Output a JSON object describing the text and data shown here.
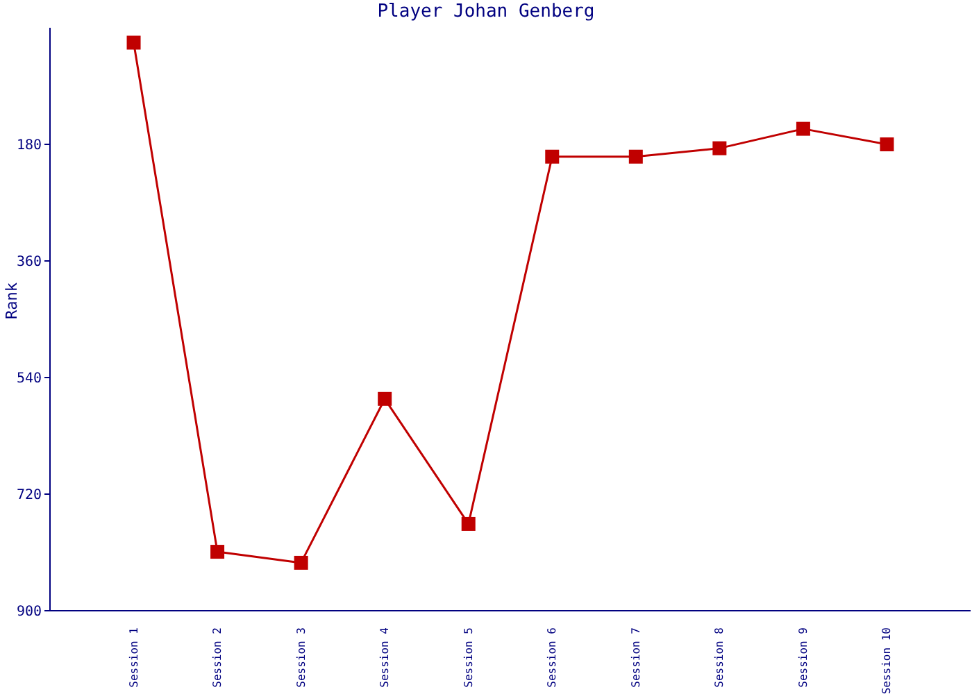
{
  "chart_data": {
    "type": "line",
    "title": "Player Johan Genberg",
    "ylabel": "Rank",
    "categories": [
      "Session 1",
      "Session 2",
      "Session 3",
      "Session 4",
      "Session 5",
      "Session 6",
      "Session 7",
      "Session 8",
      "Session 9",
      "Session 10"
    ],
    "series": [
      {
        "color": "#c00000",
        "values": [
          23,
          809,
          826,
          573,
          766,
          199,
          199,
          186,
          156,
          180
        ]
      }
    ],
    "ylim": [
      900,
      0
    ],
    "yticks": [
      180,
      360,
      540,
      720,
      900
    ],
    "grid": false,
    "legend": false,
    "marker": "square",
    "line_style": "solid"
  }
}
